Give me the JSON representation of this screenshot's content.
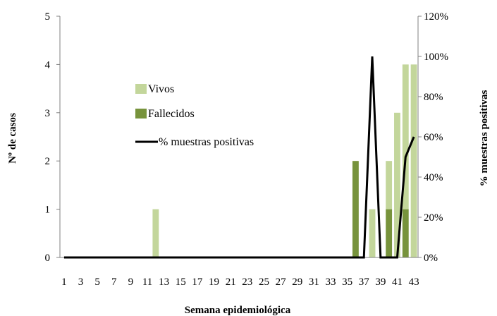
{
  "chart_data": {
    "type": "bar",
    "xlabel": "Semana epidemiológica",
    "ylabel_left": "Nº de casos",
    "ylabel_right": "% muestras positivas",
    "weeks": [
      1,
      2,
      3,
      4,
      5,
      6,
      7,
      8,
      9,
      10,
      11,
      12,
      13,
      14,
      15,
      16,
      17,
      18,
      19,
      20,
      21,
      22,
      23,
      24,
      25,
      26,
      27,
      28,
      29,
      30,
      31,
      32,
      33,
      34,
      35,
      36,
      37,
      38,
      39,
      40,
      41,
      42,
      43
    ],
    "x_tick_labels": [
      "1",
      "3",
      "5",
      "7",
      "9",
      "11",
      "13",
      "15",
      "17",
      "19",
      "21",
      "23",
      "25",
      "27",
      "29",
      "31",
      "33",
      "35",
      "37",
      "39",
      "41",
      "43"
    ],
    "ylim_left": [
      0,
      5
    ],
    "y_ticks_left": [
      "0",
      "1",
      "2",
      "3",
      "4",
      "5"
    ],
    "ylim_right": [
      0,
      120
    ],
    "y_ticks_right": [
      "0%",
      "20%",
      "40%",
      "60%",
      "80%",
      "100%",
      "120%"
    ],
    "stacked": true,
    "series": [
      {
        "name": "Fallecidos",
        "kind": "bar",
        "color": "#77933c",
        "values": [
          0,
          0,
          0,
          0,
          0,
          0,
          0,
          0,
          0,
          0,
          0,
          0,
          0,
          0,
          0,
          0,
          0,
          0,
          0,
          0,
          0,
          0,
          0,
          0,
          0,
          0,
          0,
          0,
          0,
          0,
          0,
          0,
          0,
          0,
          0,
          2,
          0,
          0,
          0,
          1,
          0,
          1,
          0
        ]
      },
      {
        "name": "Vivos",
        "kind": "bar",
        "color": "#c3d69b",
        "values": [
          0,
          0,
          0,
          0,
          0,
          0,
          0,
          0,
          0,
          0,
          0,
          1,
          0,
          0,
          0,
          0,
          0,
          0,
          0,
          0,
          0,
          0,
          0,
          0,
          0,
          0,
          0,
          0,
          0,
          0,
          0,
          0,
          0,
          0,
          0,
          0,
          0,
          1,
          0,
          1,
          3,
          3,
          4
        ]
      },
      {
        "name": "% muestras positivas",
        "kind": "line",
        "axis": "right",
        "color": "#000000",
        "values": [
          0,
          0,
          0,
          0,
          0,
          0,
          0,
          0,
          0,
          0,
          0,
          0,
          0,
          0,
          0,
          0,
          0,
          0,
          0,
          0,
          0,
          0,
          0,
          0,
          0,
          0,
          0,
          0,
          0,
          0,
          0,
          0,
          0,
          0,
          0,
          0,
          0,
          100,
          0,
          0,
          0,
          50,
          60
        ]
      }
    ],
    "legend": [
      {
        "label": "Vivos",
        "type": "swatch",
        "color": "#c3d69b"
      },
      {
        "label": "Fallecidos",
        "type": "swatch",
        "color": "#77933c"
      },
      {
        "label": "% muestras positivas",
        "type": "line",
        "color": "#000000"
      }
    ],
    "legend_position": "center-left",
    "grid": false
  }
}
